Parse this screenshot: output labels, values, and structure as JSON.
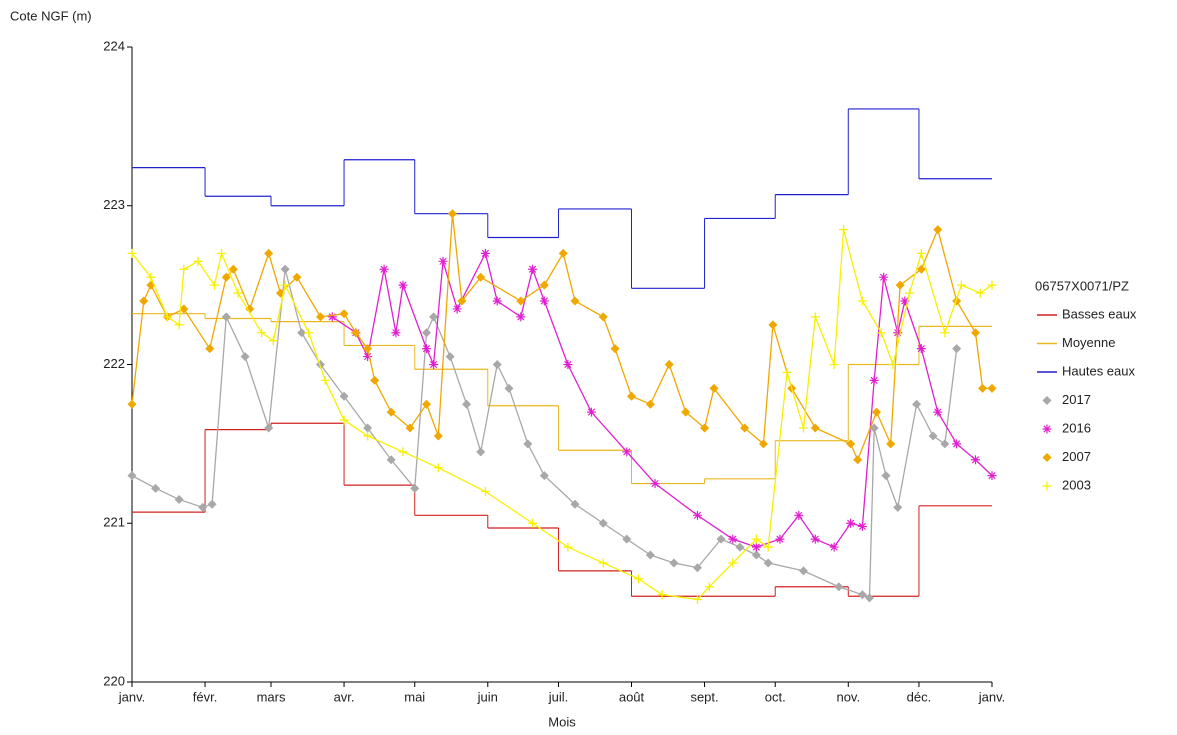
{
  "chart_data": {
    "type": "line",
    "y_label": "Cote NGF (m)",
    "x_label": "Mois",
    "legend_title": "06757X0071/PZ",
    "xlim": [
      0,
      365
    ],
    "ylim": [
      220,
      224
    ],
    "yticks": [
      220,
      221,
      222,
      223,
      224
    ],
    "xticks": [
      {
        "value": 0,
        "label": "janv."
      },
      {
        "value": 31,
        "label": "févr."
      },
      {
        "value": 59,
        "label": "mars"
      },
      {
        "value": 90,
        "label": "avr."
      },
      {
        "value": 120,
        "label": "mai"
      },
      {
        "value": 151,
        "label": "juin"
      },
      {
        "value": 181,
        "label": "juil."
      },
      {
        "value": 212,
        "label": "août"
      },
      {
        "value": 243,
        "label": "sept."
      },
      {
        "value": 273,
        "label": "oct."
      },
      {
        "value": 304,
        "label": "nov."
      },
      {
        "value": 334,
        "label": "déc."
      },
      {
        "value": 365,
        "label": "janv."
      }
    ],
    "grid": false,
    "legend": "right",
    "series": [
      {
        "name": "Basses eaux",
        "color": "#d42020",
        "style": "step",
        "x": [
          0,
          31,
          59,
          90,
          120,
          151,
          181,
          212,
          243,
          273,
          304,
          334
        ],
        "values": [
          221.07,
          221.59,
          221.63,
          221.24,
          221.05,
          220.97,
          220.7,
          220.54,
          220.54,
          220.6,
          220.54,
          221.11
        ]
      },
      {
        "name": "Moyenne",
        "color": "#e8b820",
        "style": "step",
        "x": [
          0,
          31,
          59,
          90,
          120,
          151,
          181,
          212,
          243,
          273,
          304,
          334
        ],
        "values": [
          222.32,
          222.29,
          222.27,
          222.12,
          221.97,
          221.74,
          221.46,
          221.25,
          221.28,
          221.52,
          222.0,
          222.24
        ]
      },
      {
        "name": "Hautes eaux",
        "color": "#2020d0",
        "style": "step",
        "x": [
          0,
          31,
          59,
          90,
          120,
          151,
          181,
          212,
          243,
          273,
          304,
          334
        ],
        "values": [
          223.24,
          223.06,
          223.0,
          223.29,
          222.95,
          222.8,
          222.98,
          222.48,
          222.92,
          223.07,
          223.61,
          223.17
        ]
      },
      {
        "name": "2017",
        "color": "#a8a8a8",
        "marker": "diamond",
        "x": [
          0,
          10,
          20,
          30,
          34,
          40,
          48,
          58,
          65,
          72,
          80,
          90,
          100,
          110,
          120,
          125,
          128,
          135,
          142,
          148,
          155,
          160,
          168,
          175,
          188,
          200,
          210,
          220,
          230,
          240,
          250,
          258,
          265,
          270,
          285,
          300,
          310,
          313,
          315,
          320,
          325,
          333,
          340,
          345,
          350
        ],
        "values": [
          221.3,
          221.22,
          221.15,
          221.1,
          221.12,
          222.3,
          222.05,
          221.6,
          222.6,
          222.2,
          222.0,
          221.8,
          221.6,
          221.4,
          221.22,
          222.2,
          222.3,
          222.05,
          221.75,
          221.45,
          222.0,
          221.85,
          221.5,
          221.3,
          221.12,
          221.0,
          220.9,
          220.8,
          220.75,
          220.72,
          220.9,
          220.85,
          220.8,
          220.75,
          220.7,
          220.6,
          220.55,
          220.53,
          221.6,
          221.3,
          221.1,
          221.75,
          221.55,
          221.5,
          222.1
        ]
      },
      {
        "name": "2016",
        "color": "#e020d0",
        "marker": "asterisk",
        "x": [
          85,
          95,
          100,
          107,
          112,
          115,
          125,
          128,
          132,
          138,
          150,
          155,
          165,
          170,
          175,
          185,
          195,
          210,
          222,
          240,
          255,
          265,
          275,
          283,
          290,
          298,
          305,
          310,
          315,
          319,
          325,
          328,
          335,
          342,
          350,
          358,
          365
        ],
        "values": [
          222.3,
          222.2,
          222.05,
          222.6,
          222.2,
          222.5,
          222.1,
          222.0,
          222.65,
          222.35,
          222.7,
          222.4,
          222.3,
          222.6,
          222.4,
          222.0,
          221.7,
          221.45,
          221.25,
          221.05,
          220.9,
          220.85,
          220.9,
          221.05,
          220.9,
          220.85,
          221.0,
          220.98,
          221.9,
          222.55,
          222.2,
          222.4,
          222.1,
          221.7,
          221.5,
          221.4,
          221.3
        ]
      },
      {
        "name": "2007",
        "color": "#f0a800",
        "marker": "diamond",
        "x": [
          0,
          5,
          8,
          15,
          22,
          33,
          40,
          43,
          50,
          58,
          63,
          70,
          80,
          90,
          95,
          100,
          103,
          110,
          118,
          125,
          130,
          136,
          140,
          148,
          165,
          175,
          183,
          188,
          200,
          205,
          212,
          220,
          228,
          235,
          243,
          247,
          260,
          268,
          272,
          280,
          290,
          305,
          308,
          316,
          322,
          326,
          335,
          342,
          350,
          358,
          361,
          365
        ],
        "values": [
          221.75,
          222.4,
          222.5,
          222.3,
          222.35,
          222.1,
          222.55,
          222.6,
          222.35,
          222.7,
          222.45,
          222.55,
          222.3,
          222.32,
          222.2,
          222.1,
          221.9,
          221.7,
          221.6,
          221.75,
          221.55,
          222.95,
          222.4,
          222.55,
          222.4,
          222.5,
          222.7,
          222.4,
          222.3,
          222.1,
          221.8,
          221.75,
          222.0,
          221.7,
          221.6,
          221.85,
          221.6,
          221.5,
          222.25,
          221.85,
          221.6,
          221.5,
          221.4,
          221.7,
          221.5,
          222.5,
          222.6,
          222.85,
          222.4,
          222.2,
          221.85,
          221.85
        ]
      },
      {
        "name": "2003",
        "color": "#f8f000",
        "marker": "plus",
        "x": [
          0,
          8,
          15,
          20,
          22,
          28,
          35,
          38,
          45,
          55,
          60,
          65,
          75,
          82,
          90,
          100,
          115,
          130,
          150,
          170,
          185,
          200,
          215,
          225,
          240,
          245,
          255,
          265,
          270,
          278,
          285,
          290,
          298,
          302,
          310,
          318,
          323,
          330,
          335,
          345,
          352,
          360,
          365
        ],
        "values": [
          222.7,
          222.55,
          222.3,
          222.25,
          222.6,
          222.65,
          222.5,
          222.7,
          222.45,
          222.2,
          222.15,
          222.5,
          222.2,
          221.9,
          221.65,
          221.55,
          221.45,
          221.35,
          221.2,
          221.0,
          220.85,
          220.75,
          220.65,
          220.55,
          220.52,
          220.6,
          220.75,
          220.9,
          220.85,
          221.95,
          221.6,
          222.3,
          222.0,
          222.85,
          222.4,
          222.2,
          222.0,
          222.45,
          222.7,
          222.2,
          222.5,
          222.45,
          222.5
        ]
      }
    ]
  }
}
